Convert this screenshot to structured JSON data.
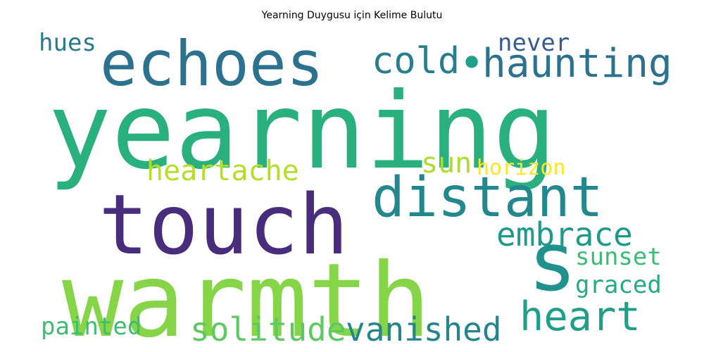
{
  "title": "Yearning Duygusu için Kelime Bulutu",
  "words": [
    {
      "text": "yearning",
      "color": "#2ab07f"
    },
    {
      "text": "warmth",
      "color": "#86d549"
    },
    {
      "text": "touch",
      "color": "#472d7b"
    },
    {
      "text": "echoes",
      "color": "#2c728e"
    },
    {
      "text": "distant",
      "color": "#23888e"
    },
    {
      "text": "s",
      "color": "#21918c"
    },
    {
      "text": "heart",
      "color": "#1f9e89"
    },
    {
      "text": "haunting",
      "color": "#2c728e"
    },
    {
      "text": "cold",
      "color": "#287d8e"
    },
    {
      "text": "embrace",
      "color": "#1f9a8a"
    },
    {
      "text": "vanished",
      "color": "#25848e"
    },
    {
      "text": "solitude",
      "color": "#5ec962"
    },
    {
      "text": "heartache",
      "color": "#b5de2b"
    },
    {
      "text": "sun",
      "color": "#addc30"
    },
    {
      "text": "horizon",
      "color": "#fde725"
    },
    {
      "text": "never",
      "color": "#365c8d"
    },
    {
      "text": "hues",
      "color": "#2a788e"
    },
    {
      "text": "sunset",
      "color": "#3bbb75"
    },
    {
      "text": "graced",
      "color": "#25ab82"
    },
    {
      "text": "painted",
      "color": "#3dbc74"
    },
    {
      "text": "•",
      "color": "#1fa088"
    }
  ]
}
